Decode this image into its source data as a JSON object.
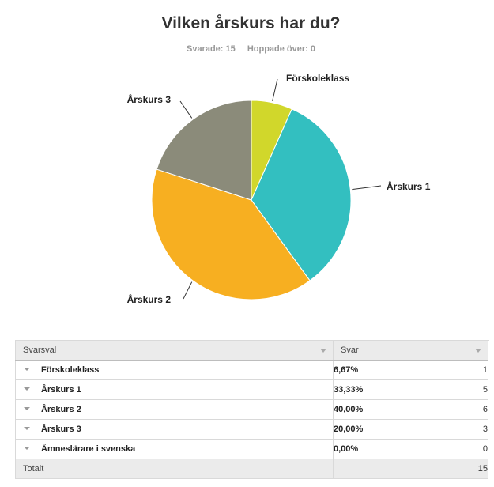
{
  "page": {
    "title": "Vilken årskurs har du?",
    "answered": "Svarade: 15",
    "skipped": "Hoppade över: 0"
  },
  "chart_data": {
    "type": "pie",
    "title": "Vilken årskurs har du?",
    "categories": [
      "Förskoleklass",
      "Årskurs 1",
      "Årskurs 2",
      "Årskurs 3",
      "Ämneslärare i svenska"
    ],
    "values": [
      6.67,
      33.33,
      40.0,
      20.0,
      0.0
    ],
    "counts": [
      1,
      5,
      6,
      3,
      0
    ],
    "colors": [
      "#d1d72b",
      "#33bfc0",
      "#f7af21",
      "#8b8b7a",
      "#cccccc"
    ]
  },
  "table": {
    "col_option": "Svarsval",
    "col_answers": "Svar",
    "rows": [
      {
        "option": "Förskoleklass",
        "percent": "6,67%",
        "count": "1"
      },
      {
        "option": "Årskurs 1",
        "percent": "33,33%",
        "count": "5"
      },
      {
        "option": "Årskurs 2",
        "percent": "40,00%",
        "count": "6"
      },
      {
        "option": "Årskurs 3",
        "percent": "20,00%",
        "count": "3"
      },
      {
        "option": "Ämneslärare i svenska",
        "percent": "0,00%",
        "count": "0"
      }
    ],
    "total_label": "Totalt",
    "total_value": "15"
  }
}
